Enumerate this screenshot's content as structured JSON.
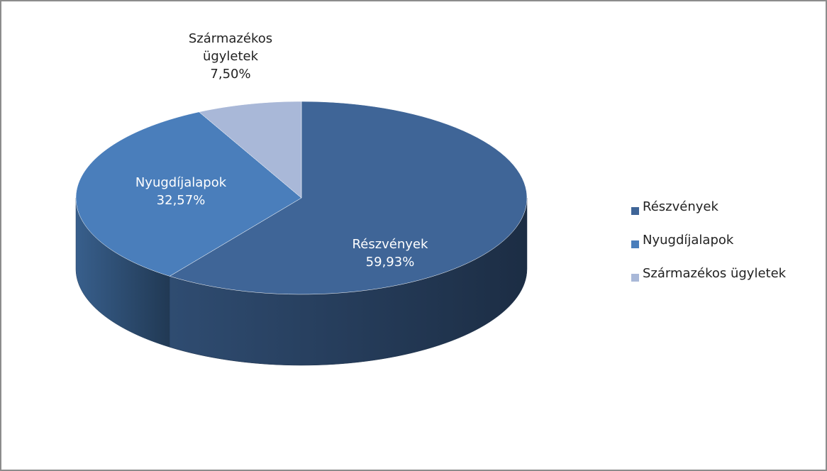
{
  "chart_data": {
    "type": "pie3d",
    "categories": [
      "Részvények",
      "Nyugdíjalapok",
      "Származékos ügyletek"
    ],
    "values": [
      59.93,
      32.57,
      7.5
    ],
    "value_labels": [
      "59,93%",
      "32,57%",
      "7,50%"
    ],
    "colors": [
      "#3f6597",
      "#4a7ebb",
      "#a9b8d8"
    ],
    "legend": "right"
  }
}
